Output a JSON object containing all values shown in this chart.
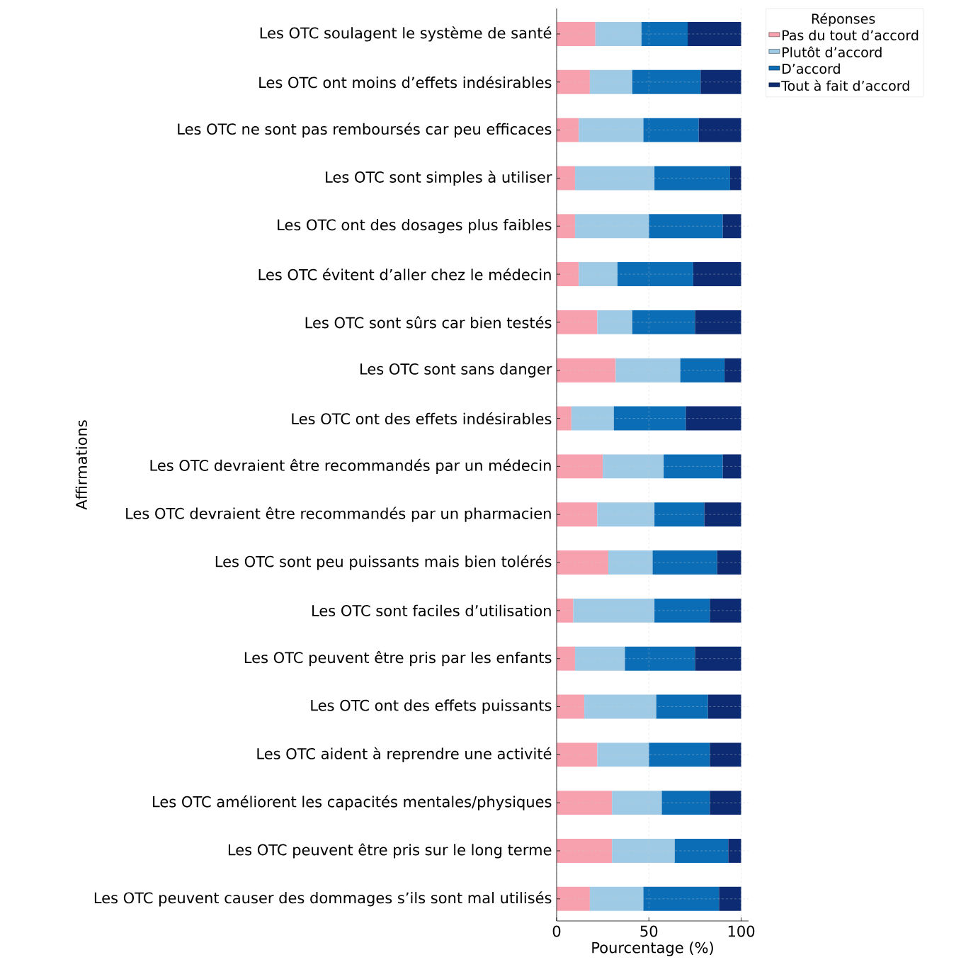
{
  "chart_data": {
    "type": "bar",
    "orientation": "horizontal",
    "stacked": true,
    "xlabel": "Pourcentage (%)",
    "ylabel": "Affirmations",
    "legend_title": "Réponses",
    "legend": "top right",
    "grid": true,
    "categories": [
      "Les OTC soulagent le système de santé",
      "Les OTC ont moins d’effets indésirables",
      "Les OTC ne sont pas remboursés car peu efficaces",
      "Les OTC sont simples à utiliser",
      "Les OTC ont des dosages plus faibles",
      "Les OTC évitent d’aller chez le médecin",
      "Les OTC sont sûrs car bien testés",
      "Les OTC sont sans danger",
      "Les OTC ont des effets indésirables",
      "Les OTC devraient être recommandés par un médecin",
      "Les OTC devraient être recommandés par un pharmacien",
      "Les OTC sont peu puissants mais bien tolérés",
      "Les OTC sont faciles d’utilisation",
      "Les OTC peuvent être pris par les enfants",
      "Les OTC ont des effets puissants",
      "Les OTC aident à reprendre une activité",
      "Les OTC améliorent les capacités mentales/physiques",
      "Les OTC peuvent être pris sur le long terme",
      "Les OTC peuvent causer des dommages s’ils sont mal utilisés"
    ],
    "xlim": [
      0,
      104
    ],
    "xticks": [
      0,
      50,
      100
    ],
    "series": [
      {
        "name": "Pas du tout d’accord",
        "color": "#f7a1ae",
        "values": [
          21,
          18,
          12,
          10,
          10,
          12,
          22,
          32,
          8,
          25,
          22,
          28,
          9,
          10,
          15,
          22,
          30,
          30,
          18
        ]
      },
      {
        "name": "Plutôt d’accord",
        "color": "#9ecae6",
        "values": [
          25,
          23,
          35,
          43,
          40,
          21,
          19,
          35,
          23,
          33,
          31,
          24,
          44,
          27,
          39,
          28,
          27,
          34,
          29
        ]
      },
      {
        "name": "D’accord",
        "color": "#0b6db6",
        "values": [
          25,
          37,
          30,
          41,
          40,
          41,
          34,
          24,
          39,
          32,
          27,
          35,
          30,
          38,
          28,
          33,
          26,
          29,
          41
        ]
      },
      {
        "name": "Tout à fait d’accord",
        "color": "#0c2b72",
        "values": [
          29,
          22,
          23,
          6,
          10,
          26,
          25,
          9,
          30,
          10,
          20,
          13,
          17,
          25,
          18,
          17,
          17,
          7,
          12
        ]
      }
    ]
  }
}
